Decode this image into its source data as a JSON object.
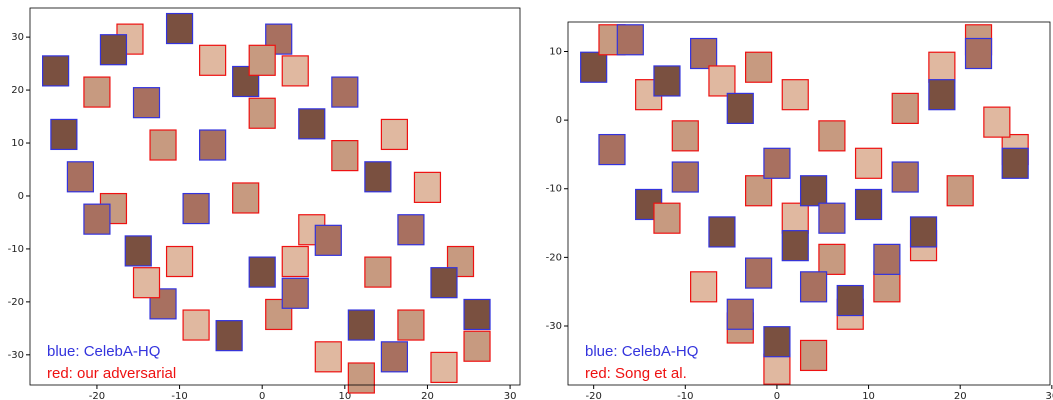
{
  "chart_data": [
    {
      "type": "scatter",
      "xlim": [
        -28.1,
        31.2
      ],
      "ylim": [
        -35.7,
        35.5
      ],
      "xticks": [
        -20,
        -10,
        0,
        10,
        20,
        30
      ],
      "yticks": [
        -30,
        -20,
        -10,
        0,
        10,
        20,
        30
      ],
      "legend": "lower left",
      "series": [
        {
          "name": "blue: CelebA-HQ",
          "color": "#3333dd",
          "x": [
            -25,
            -22,
            -18,
            -14,
            -10,
            -6,
            -2,
            2,
            6,
            10,
            -24,
            -20,
            -15,
            -8,
            0,
            8,
            14,
            -12,
            -4,
            4,
            12,
            18,
            22,
            16,
            26
          ],
          "values": [
            24,
            4,
            28,
            18,
            32,
            10,
            22,
            30,
            14,
            20,
            12,
            -4,
            -10,
            -2,
            -14,
            -8,
            4,
            -20,
            -26,
            -18,
            -24,
            -6,
            -16,
            -30,
            -22
          ]
        },
        {
          "name": "red: our adversarial",
          "color": "#ee1111",
          "x": [
            -20,
            -16,
            -12,
            -6,
            0,
            4,
            10,
            16,
            -18,
            -10,
            -2,
            6,
            14,
            20,
            24,
            -8,
            2,
            8,
            18,
            22,
            26,
            -14,
            12,
            4,
            0
          ],
          "values": [
            20,
            30,
            10,
            26,
            16,
            24,
            8,
            12,
            -2,
            -12,
            0,
            -6,
            -14,
            2,
            -12,
            -24,
            -22,
            -30,
            -24,
            -32,
            -28,
            -16,
            -34,
            -12,
            26
          ]
        }
      ]
    },
    {
      "type": "scatter",
      "xlim": [
        -22.8,
        29.8
      ],
      "ylim": [
        -38.6,
        14.3
      ],
      "xticks": [
        -20,
        -10,
        0,
        10,
        20,
        30
      ],
      "yticks": [
        -30,
        -20,
        -10,
        0,
        10
      ],
      "legend": "lower left",
      "series": [
        {
          "name": "blue: CelebA-HQ",
          "color": "#3333dd",
          "x": [
            -20,
            -16,
            -12,
            -8,
            -4,
            0,
            4,
            -18,
            -14,
            -10,
            -6,
            -2,
            2,
            6,
            10,
            14,
            18,
            22,
            26,
            -4,
            0,
            4,
            8,
            12,
            16
          ],
          "values": [
            8,
            12,
            6,
            10,
            2,
            -6,
            -10,
            -4,
            -12,
            -8,
            -16,
            -22,
            -18,
            -14,
            -12,
            -8,
            4,
            10,
            -6,
            -28,
            -32,
            -24,
            -26,
            -20,
            -16
          ]
        },
        {
          "name": "red: Song et al.",
          "color": "#ee1111",
          "x": [
            -18,
            -14,
            -10,
            -6,
            -2,
            2,
            6,
            10,
            14,
            18,
            22,
            26,
            -12,
            -8,
            -4,
            0,
            4,
            8,
            12,
            16,
            20,
            24,
            -2,
            2,
            6
          ],
          "values": [
            12,
            4,
            -2,
            6,
            -10,
            -14,
            -20,
            -6,
            2,
            8,
            12,
            -4,
            -14,
            -24,
            -30,
            -36,
            -34,
            -28,
            -24,
            -18,
            -10,
            0,
            8,
            4,
            -2
          ]
        }
      ]
    }
  ]
}
